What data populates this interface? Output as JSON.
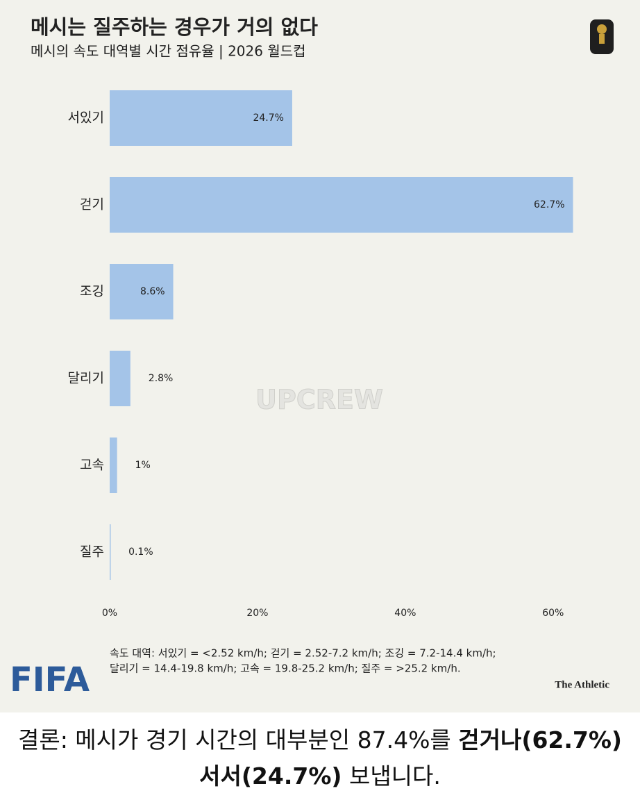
{
  "chart_data": {
    "type": "hbar",
    "title": "메시는 질주하는 경우가 거의 없다",
    "subtitle": "메시의 속도 대역별 시간 점유율 | 2026 월드컵",
    "categories": [
      "서있기",
      "걷기",
      "조깅",
      "달리기",
      "고속",
      "질주"
    ],
    "values": [
      24.7,
      62.7,
      8.6,
      2.8,
      1,
      0.1
    ],
    "value_labels": [
      "24.7%",
      "62.7%",
      "8.6%",
      "2.8%",
      "1%",
      "0.1%"
    ],
    "color": "#a4c4e8",
    "xlim": [
      0,
      65
    ],
    "xticks": [
      {
        "value": 0,
        "label": "0%"
      },
      {
        "value": 20,
        "label": "20%"
      },
      {
        "value": 40,
        "label": "40%"
      },
      {
        "value": 60,
        "label": "60%"
      }
    ],
    "grid": false,
    "note": [
      "속도 대역: 서있기 = <2.52 km/h; 걷기 = 2.52-7.2 km/h; 조깅 = 7.2-14.4 km/h;",
      "달리기 = 14.4-19.8 km/h; 고속 = 19.8-25.2 km/h; 질주 = >25.2 km/h."
    ],
    "logo": "FIFA",
    "source": "The Athletic",
    "watermark": "UPCREW"
  },
  "caption": {
    "parts": [
      "결론: 메시가 경기 시간의 대부분인 87.4%를 ",
      "걷거나(62.7%)",
      "서서(24.7%)",
      " 보냅니다."
    ]
  }
}
